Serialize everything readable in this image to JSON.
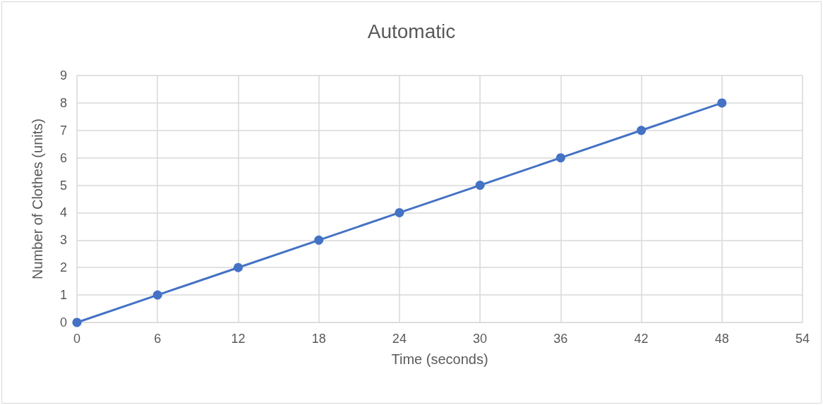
{
  "chart_data": {
    "type": "line",
    "title": "Automatic",
    "xlabel": "Time (seconds)",
    "ylabel": "Number of Clothes (units)",
    "x": [
      0,
      6,
      12,
      18,
      24,
      30,
      36,
      42,
      48
    ],
    "series": [
      {
        "color": "#4472c4",
        "values": [
          0,
          1,
          2,
          3,
          4,
          5,
          6,
          7,
          8
        ]
      }
    ],
    "xlim": [
      0,
      54
    ],
    "xticks": [
      0,
      6,
      12,
      18,
      24,
      30,
      36,
      42,
      48,
      54
    ],
    "ylim": [
      0,
      9
    ],
    "yticks": [
      0,
      1,
      2,
      3,
      4,
      5,
      6,
      7,
      8,
      9
    ],
    "grid": true,
    "marker": "circle",
    "line_style": "solid"
  }
}
